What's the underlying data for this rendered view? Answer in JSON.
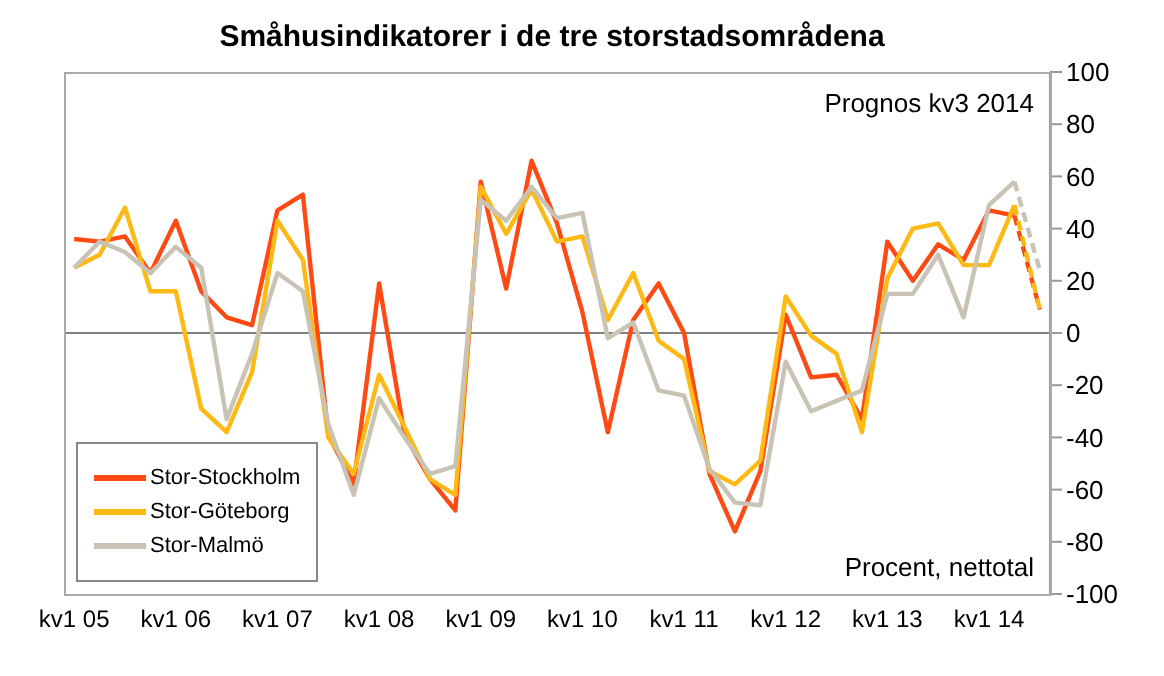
{
  "chart_data": {
    "type": "line",
    "title": "Småhusindikatorer i de tre storstadsområdena",
    "categories": [
      "kv1 05",
      null,
      null,
      null,
      "kv1 06",
      null,
      null,
      null,
      "kv1 07",
      null,
      null,
      null,
      "kv1 08",
      null,
      null,
      null,
      "kv1 09",
      null,
      null,
      null,
      "kv1 10",
      null,
      null,
      null,
      "kv1 11",
      null,
      null,
      null,
      "kv1 12",
      null,
      null,
      null,
      "kv1 13",
      null,
      null,
      null,
      "kv1 14",
      null,
      null
    ],
    "series": [
      {
        "name": "Stor-Stockholm",
        "color": "#ff4a14",
        "values": [
          36,
          35,
          37,
          23,
          43,
          16,
          6,
          3,
          47,
          53,
          -39,
          -58,
          19,
          -39,
          -56,
          -68,
          58,
          17,
          66,
          42,
          8,
          -38,
          5,
          19,
          0,
          -54,
          -76,
          -53,
          7,
          -17,
          -16,
          -33,
          35,
          20,
          34,
          28,
          47,
          45,
          null
        ]
      },
      {
        "name": "Stor-Göteborg",
        "color": "#ffb914",
        "values": [
          25,
          30,
          48,
          16,
          16,
          -29,
          -38,
          -15,
          43,
          28,
          -40,
          -54,
          -16,
          -36,
          -56,
          -62,
          56,
          38,
          55,
          35,
          37,
          5,
          23,
          -3,
          -10,
          -53,
          -58,
          -49,
          14,
          -1,
          -8,
          -38,
          21,
          40,
          42,
          26,
          26,
          49,
          null
        ]
      },
      {
        "name": "Stor-Malmö",
        "color": "#c8c3b4",
        "values": [
          25,
          35,
          31,
          23,
          33,
          25,
          -33,
          -8,
          23,
          16,
          -35,
          -62,
          -25,
          -40,
          -54,
          -51,
          51,
          43,
          56,
          44,
          46,
          -2,
          4,
          -22,
          -24,
          -52,
          -65,
          -66,
          -11,
          -30,
          -26,
          -22,
          15,
          15,
          30,
          6,
          49,
          58,
          null
        ]
      },
      {
        "color": "#ff4a14",
        "line_style": "dashed",
        "values": [
          null,
          null,
          null,
          null,
          null,
          null,
          null,
          null,
          null,
          null,
          null,
          null,
          null,
          null,
          null,
          null,
          null,
          null,
          null,
          null,
          null,
          null,
          null,
          null,
          null,
          null,
          null,
          null,
          null,
          null,
          null,
          null,
          null,
          null,
          null,
          null,
          null,
          45,
          9
        ]
      },
      {
        "color": "#ffb914",
        "line_style": "dashed",
        "values": [
          null,
          null,
          null,
          null,
          null,
          null,
          null,
          null,
          null,
          null,
          null,
          null,
          null,
          null,
          null,
          null,
          null,
          null,
          null,
          null,
          null,
          null,
          null,
          null,
          null,
          null,
          null,
          null,
          null,
          null,
          null,
          null,
          null,
          null,
          null,
          null,
          null,
          49,
          9
        ]
      },
      {
        "color": "#c8c3b4",
        "line_style": "dashed",
        "values": [
          null,
          null,
          null,
          null,
          null,
          null,
          null,
          null,
          null,
          null,
          null,
          null,
          null,
          null,
          null,
          null,
          null,
          null,
          null,
          null,
          null,
          null,
          null,
          null,
          null,
          null,
          null,
          null,
          null,
          null,
          null,
          null,
          null,
          null,
          null,
          null,
          null,
          58,
          24
        ]
      }
    ],
    "ylim": [
      -100,
      100
    ],
    "yticks": [
      -100,
      -80,
      -60,
      -40,
      -20,
      0,
      20,
      40,
      60,
      80,
      100
    ],
    "ref_lines": [
      {
        "axis": "y",
        "value": 0,
        "color": "#808080"
      }
    ],
    "annotations": [
      "Prognos kv3 2014",
      "Procent, nettotal"
    ],
    "legend": "bottom left",
    "grid": false,
    "marker": "none",
    "line_style": "solid"
  }
}
